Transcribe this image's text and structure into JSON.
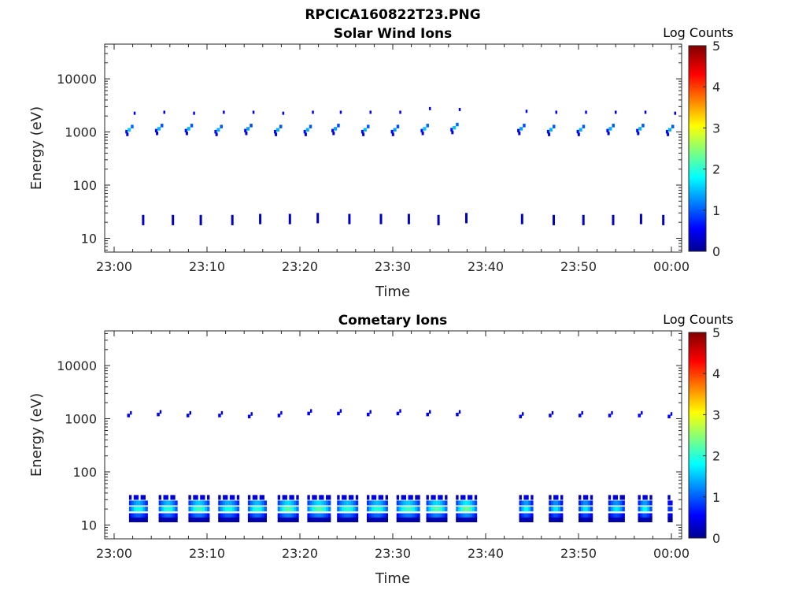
{
  "figure": {
    "title": "RPCICA160822T23.PNG"
  },
  "chart_data": [
    {
      "type": "heatmap",
      "title": "Solar Wind Ions",
      "xlabel": "Time",
      "ylabel": "Energy (eV)",
      "x_ticks": [
        "23:00",
        "23:10",
        "23:20",
        "23:30",
        "23:40",
        "23:50",
        "00:00"
      ],
      "x_range_minutes": [
        -0.2,
        61.2
      ],
      "y_ticks": [
        "10",
        "100",
        "1000",
        "10000"
      ],
      "y_scale": "log",
      "y_range": [
        5.5,
        45000
      ],
      "colorbar": {
        "title": "Log Counts",
        "ticks": [
          "0",
          "1",
          "2",
          "3",
          "4",
          "5"
        ],
        "range": [
          0,
          5
        ],
        "colormap": "jet"
      },
      "spectrum": {
        "high_band": {
          "period_minutes": 3.1,
          "start_minutes": [
            1.2,
            4.4,
            7.6,
            10.8,
            14.0,
            17.2,
            20.4,
            23.4,
            26.6,
            29.8,
            33.0,
            36.2,
            43.4,
            46.6,
            49.8,
            53.0,
            56.2,
            59.4
          ],
          "core_energy": [
            1100,
            1150,
            1150,
            1100,
            1150,
            1100,
            1100,
            1150,
            1100,
            1100,
            1150,
            1200,
            1150,
            1100,
            1100,
            1150,
            1150,
            1100
          ],
          "peak_level": [
            1.6,
            1.5,
            1.5,
            1.5,
            1.4,
            1.5,
            1.5,
            1.4,
            1.5,
            1.4,
            1.6,
            1.6,
            1.4,
            1.5,
            1.5,
            1.5,
            1.5,
            1.5
          ],
          "upper_energy": [
            2300,
            2400,
            2300,
            2400,
            2400,
            2300,
            2400,
            2400,
            2400,
            2400,
            2800,
            2700,
            2500,
            2400,
            2400,
            2400,
            2400,
            2300
          ]
        },
        "low_band": {
          "start_minutes": [
            3.0,
            6.2,
            9.2,
            12.6,
            15.6,
            18.8,
            21.8,
            25.2,
            28.6,
            31.6,
            34.8,
            37.8,
            43.8,
            47.2,
            50.4,
            53.6,
            56.6,
            59.0
          ],
          "energy": [
            22,
            22,
            22,
            22,
            23,
            23,
            24,
            23,
            23,
            23,
            22,
            24,
            23,
            22,
            22,
            22,
            23,
            22
          ],
          "level": [
            0.3,
            0.3,
            0.3,
            0.3,
            0.3,
            0.3,
            0.3,
            0.3,
            0.3,
            0.3,
            0.3,
            0.3,
            0.3,
            0.3,
            0.3,
            0.3,
            0.3,
            0.3
          ]
        }
      }
    },
    {
      "type": "heatmap",
      "title": "Cometary Ions",
      "xlabel": "Time",
      "ylabel": "Energy (eV)",
      "x_ticks": [
        "23:00",
        "23:10",
        "23:20",
        "23:30",
        "23:40",
        "23:50",
        "00:00"
      ],
      "x_range_minutes": [
        -0.2,
        61.2
      ],
      "y_ticks": [
        "10",
        "100",
        "1000",
        "10000"
      ],
      "y_scale": "log",
      "y_range": [
        5.5,
        45000
      ],
      "colorbar": {
        "title": "Log Counts",
        "ticks": [
          "0",
          "1",
          "2",
          "3",
          "4",
          "5"
        ],
        "range": [
          0,
          5
        ],
        "colormap": "jet"
      },
      "spectrum": {
        "high_band": {
          "start_minutes": [
            1.4,
            4.6,
            7.8,
            11.2,
            14.4,
            17.6,
            20.8,
            24.0,
            27.2,
            30.4,
            33.6,
            36.8,
            43.6,
            46.8,
            50.0,
            53.2,
            56.4,
            59.6
          ],
          "energy": [
            1150,
            1200,
            1150,
            1150,
            1100,
            1150,
            1250,
            1250,
            1200,
            1250,
            1200,
            1200,
            1100,
            1150,
            1150,
            1150,
            1150,
            1100
          ],
          "level": [
            0.6,
            0.6,
            0.6,
            0.6,
            0.6,
            0.6,
            0.6,
            0.6,
            0.6,
            0.6,
            0.6,
            0.6,
            0.6,
            0.6,
            0.6,
            0.6,
            0.6,
            0.6
          ]
        },
        "low_band": {
          "start_minutes": [
            1.6,
            4.8,
            8.0,
            11.2,
            14.4,
            17.6,
            20.8,
            24.0,
            27.2,
            30.4,
            33.6,
            36.8,
            43.6,
            46.8,
            50.0,
            53.2,
            56.4,
            59.6
          ],
          "duration_minutes": [
            2.0,
            2.0,
            2.2,
            2.2,
            2.0,
            2.2,
            2.6,
            2.2,
            2.2,
            2.4,
            2.2,
            2.2,
            1.4,
            1.6,
            1.6,
            1.8,
            1.4,
            0.4
          ],
          "peak_level": [
            2.0,
            2.1,
            2.2,
            2.0,
            2.1,
            2.3,
            2.3,
            2.1,
            2.1,
            2.2,
            2.3,
            2.4,
            1.9,
            1.8,
            1.8,
            1.8,
            1.9,
            1.6
          ]
        }
      }
    }
  ]
}
